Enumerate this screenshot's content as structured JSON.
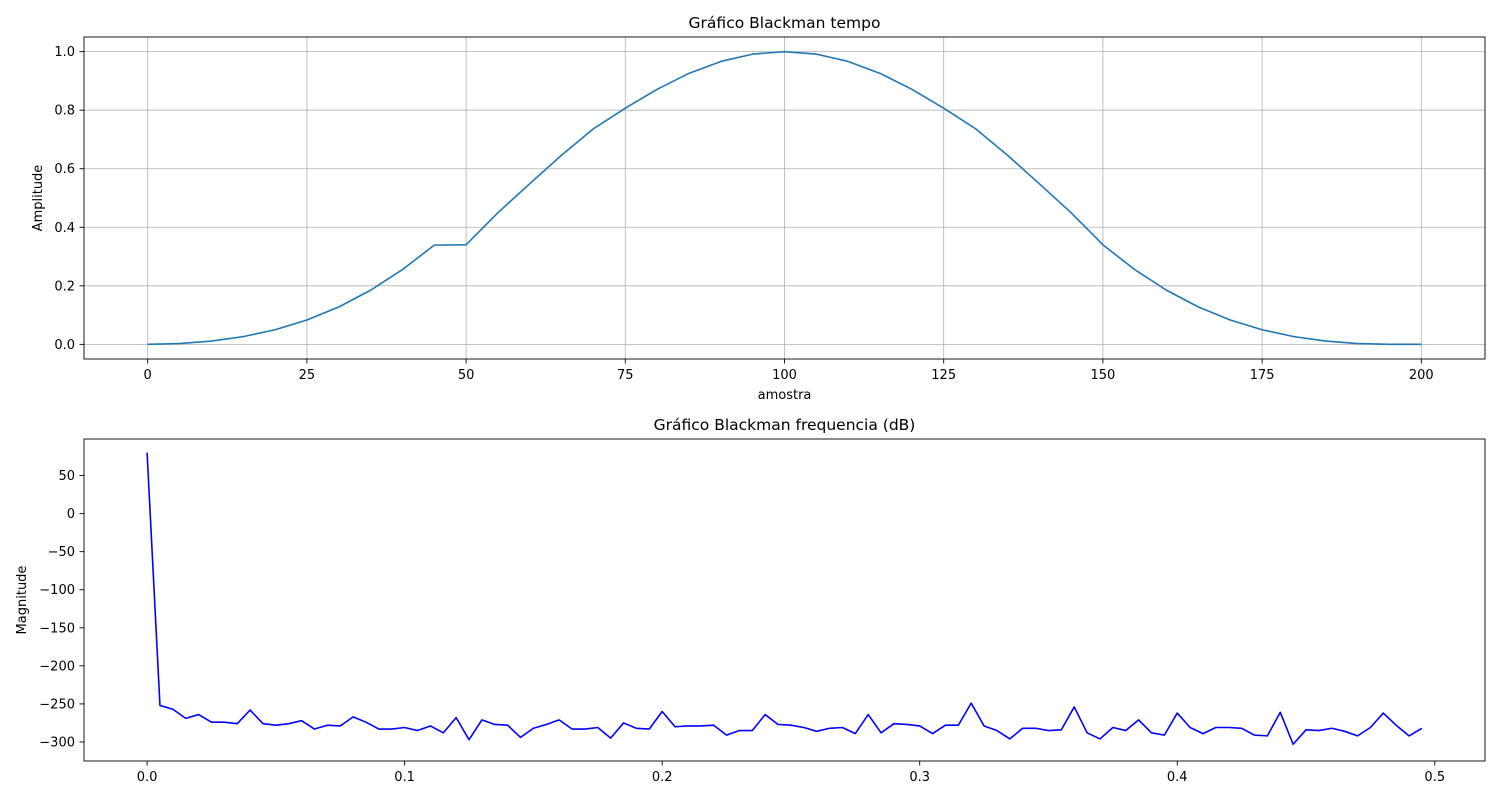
{
  "chart_data": [
    {
      "type": "line",
      "title": "Gráfico Blackman tempo",
      "xlabel": "amostra",
      "ylabel": "Amplitude",
      "xlim": [
        -10,
        210
      ],
      "ylim": [
        -0.05,
        1.05
      ],
      "xticks": [
        0,
        25,
        50,
        75,
        100,
        125,
        150,
        175,
        200
      ],
      "xtick_labels": [
        "0",
        "25",
        "50",
        "75",
        "100",
        "125",
        "150",
        "175",
        "200"
      ],
      "yticks": [
        0.0,
        0.2,
        0.4,
        0.6,
        0.8,
        1.0
      ],
      "ytick_labels": [
        "0.0",
        "0.2",
        "0.4",
        "0.6",
        "0.8",
        "1.0"
      ],
      "grid": true,
      "series": [
        {
          "color": "#1f77b4",
          "x": [
            0,
            5,
            10,
            15,
            20,
            25,
            30,
            35,
            40,
            45,
            50,
            55,
            60,
            65,
            70,
            75,
            80,
            85,
            90,
            95,
            100,
            105,
            110,
            115,
            120,
            125,
            130,
            135,
            140,
            145,
            150,
            155,
            160,
            165,
            170,
            175,
            180,
            185,
            190,
            195,
            200
          ],
          "y": [
            0.0,
            0.0027,
            0.0112,
            0.0265,
            0.05,
            0.0832,
            0.1277,
            0.1849,
            0.2553,
            0.339,
            0.34,
            0.4498,
            0.5489,
            0.6464,
            0.7366,
            0.8067,
            0.8714,
            0.9259,
            0.9665,
            0.9916,
            1.0,
            0.9916,
            0.9665,
            0.9259,
            0.8714,
            0.8067,
            0.7366,
            0.6464,
            0.5489,
            0.4498,
            0.34,
            0.2553,
            0.1849,
            0.1277,
            0.0832,
            0.05,
            0.0265,
            0.0112,
            0.0027,
            0.0,
            0.0
          ]
        }
      ]
    },
    {
      "type": "line",
      "title": "Gráfico Blackman frequencia (dB)",
      "xlabel": "",
      "ylabel": "Magnitude",
      "xlim": [
        -0.0245,
        0.5195
      ],
      "ylim": [
        -325,
        98
      ],
      "xticks": [
        0.0,
        0.1,
        0.2,
        0.3,
        0.4,
        0.5
      ],
      "xtick_labels": [
        "0.0",
        "0.1",
        "0.2",
        "0.3",
        "0.4",
        "0.5"
      ],
      "yticks": [
        50,
        0,
        -50,
        -100,
        -150,
        -200,
        -250,
        -300
      ],
      "ytick_labels": [
        "50",
        "0",
        "−50",
        "−100",
        "−150",
        "−200",
        "−250",
        "−300"
      ],
      "grid": false,
      "series": [
        {
          "color": "#0000ff",
          "x": [
            0.0,
            0.005,
            0.01,
            0.015,
            0.02,
            0.025,
            0.03,
            0.035,
            0.04,
            0.045,
            0.05,
            0.055,
            0.06,
            0.065,
            0.07,
            0.075,
            0.08,
            0.085,
            0.09,
            0.095,
            0.1,
            0.105,
            0.11,
            0.115,
            0.12,
            0.125,
            0.13,
            0.135,
            0.14,
            0.145,
            0.15,
            0.155,
            0.16,
            0.165,
            0.17,
            0.175,
            0.18,
            0.185,
            0.19,
            0.195,
            0.2,
            0.205,
            0.21,
            0.215,
            0.22,
            0.225,
            0.23,
            0.235,
            0.24,
            0.245,
            0.25,
            0.255,
            0.26,
            0.265,
            0.27,
            0.275,
            0.28,
            0.285,
            0.29,
            0.295,
            0.3,
            0.305,
            0.31,
            0.315,
            0.32,
            0.325,
            0.33,
            0.335,
            0.34,
            0.345,
            0.35,
            0.355,
            0.36,
            0.365,
            0.37,
            0.375,
            0.38,
            0.385,
            0.39,
            0.395,
            0.4,
            0.405,
            0.41,
            0.415,
            0.42,
            0.425,
            0.43,
            0.435,
            0.44,
            0.445,
            0.45,
            0.455,
            0.46,
            0.465,
            0.47,
            0.475,
            0.48,
            0.485,
            0.49,
            0.495
          ],
          "y": [
            80,
            -252,
            -257,
            -269,
            -264,
            -274,
            -274,
            -276,
            -258,
            -276,
            -278,
            -276,
            -272,
            -283,
            -278,
            -279,
            -267,
            -274,
            -283,
            -283,
            -281,
            -285,
            -279,
            -288,
            -268,
            -297,
            -271,
            -277,
            -278,
            -294,
            -282,
            -277,
            -271,
            -283,
            -283,
            -281,
            -295,
            -275,
            -282,
            -283,
            -260,
            -280,
            -279,
            -279,
            -278,
            -291,
            -285,
            -285,
            -264,
            -277,
            -278,
            -281,
            -286,
            -282,
            -281,
            -289,
            -264,
            -288,
            -276,
            -277,
            -279,
            -289,
            -278,
            -278,
            -249,
            -279,
            -285,
            -296,
            -282,
            -282,
            -285,
            -284,
            -254,
            -288,
            -296,
            -281,
            -285,
            -271,
            -288,
            -291,
            -262,
            -281,
            -289,
            -281,
            -281,
            -282,
            -291,
            -292,
            -261,
            -303,
            -284,
            -285,
            -282,
            -286,
            -292,
            -281,
            -262,
            -278,
            -292,
            -282
          ]
        }
      ]
    }
  ]
}
